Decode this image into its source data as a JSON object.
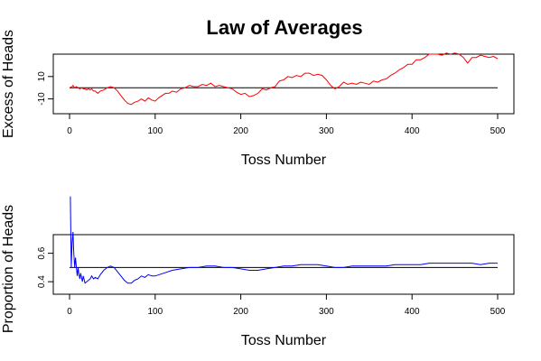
{
  "title": "Law of Averages",
  "chart_data": [
    {
      "type": "line",
      "title": "Law of Averages",
      "xlabel": "Toss Number",
      "ylabel": "Excess of Heads",
      "xlim": [
        0,
        500
      ],
      "ylim": [
        -20,
        30
      ],
      "x_ticks": [
        0,
        100,
        200,
        300,
        400,
        500
      ],
      "y_ticks": [
        -10,
        10
      ],
      "reference_line": 0,
      "grid": false,
      "color": "#ff0000",
      "series": [
        {
          "x": [
            1,
            2,
            3,
            4,
            5,
            6,
            8,
            10,
            12,
            14,
            16,
            18,
            20,
            22,
            24,
            26,
            28,
            30,
            33,
            36,
            40,
            44,
            48,
            52,
            56,
            60,
            64,
            68,
            72,
            76,
            80,
            84,
            88,
            92,
            96,
            100,
            104,
            108,
            112,
            116,
            120,
            125,
            130,
            135,
            140,
            145,
            150,
            155,
            160,
            165,
            170,
            175,
            180,
            185,
            190,
            195,
            200,
            205,
            210,
            215,
            220,
            225,
            230,
            235,
            240,
            245,
            250,
            255,
            260,
            265,
            270,
            275,
            280,
            285,
            290,
            295,
            300,
            305,
            310,
            315,
            320,
            325,
            330,
            335,
            340,
            345,
            350,
            355,
            360,
            365,
            370,
            375,
            380,
            385,
            390,
            395,
            400,
            405,
            410,
            415,
            420,
            425,
            430,
            435,
            440,
            445,
            450,
            455,
            460,
            465,
            470,
            475,
            480,
            485,
            490,
            495,
            500
          ],
          "values": [
            1,
            0,
            1,
            2,
            1,
            0,
            1,
            0,
            -1,
            0,
            -1,
            -1,
            -2,
            -1,
            -2,
            -1,
            -3,
            -3,
            -5,
            -3,
            -2,
            0,
            1,
            0,
            -3,
            -7,
            -11,
            -14,
            -15,
            -13,
            -12,
            -10,
            -12,
            -9,
            -11,
            -12,
            -9,
            -7,
            -5,
            -5,
            -3,
            -4,
            -1,
            0,
            2,
            1,
            1,
            3,
            2,
            4,
            1,
            2,
            1,
            0,
            -1,
            -4,
            -6,
            -5,
            -8,
            -7,
            -5,
            -1,
            -2,
            0,
            1,
            6,
            7,
            10,
            9,
            11,
            10,
            13,
            13,
            11,
            12,
            11,
            7,
            2,
            -1,
            1,
            5,
            3,
            4,
            3,
            5,
            4,
            3,
            6,
            5,
            7,
            8,
            11,
            13,
            16,
            18,
            21,
            21,
            25,
            25,
            27,
            30,
            30,
            30,
            29,
            31,
            30,
            31,
            30,
            27,
            22,
            27,
            27,
            29,
            28,
            27,
            28,
            26
          ]
        }
      ]
    },
    {
      "type": "line",
      "xlabel": "Toss Number",
      "ylabel": "Proportion of Heads",
      "xlim": [
        0,
        500
      ],
      "ylim": [
        0.35,
        0.75
      ],
      "x_ticks": [
        0,
        100,
        200,
        300,
        400,
        500
      ],
      "y_ticks": [
        0.4,
        0.6
      ],
      "reference_line": 0.5,
      "grid": false,
      "color": "#0000ff",
      "series": [
        {
          "x": [
            1,
            2,
            3,
            4,
            5,
            6,
            7,
            8,
            9,
            10,
            11,
            12,
            13,
            14,
            15,
            16,
            18,
            20,
            22,
            24,
            26,
            28,
            30,
            33,
            36,
            40,
            44,
            48,
            52,
            56,
            60,
            64,
            68,
            72,
            76,
            80,
            84,
            88,
            92,
            96,
            100,
            110,
            120,
            130,
            140,
            150,
            160,
            170,
            180,
            190,
            200,
            210,
            220,
            230,
            240,
            250,
            260,
            270,
            280,
            290,
            300,
            310,
            320,
            330,
            340,
            350,
            360,
            370,
            380,
            390,
            400,
            410,
            420,
            430,
            440,
            450,
            460,
            470,
            480,
            490,
            500
          ],
          "values": [
            1.0,
            0.5,
            0.67,
            0.75,
            0.6,
            0.5,
            0.57,
            0.5,
            0.44,
            0.5,
            0.45,
            0.42,
            0.46,
            0.43,
            0.4,
            0.44,
            0.39,
            0.4,
            0.41,
            0.42,
            0.44,
            0.42,
            0.43,
            0.42,
            0.45,
            0.48,
            0.5,
            0.51,
            0.5,
            0.47,
            0.44,
            0.41,
            0.39,
            0.39,
            0.41,
            0.42,
            0.44,
            0.43,
            0.45,
            0.44,
            0.44,
            0.46,
            0.48,
            0.49,
            0.5,
            0.5,
            0.51,
            0.51,
            0.5,
            0.5,
            0.49,
            0.48,
            0.48,
            0.49,
            0.5,
            0.51,
            0.51,
            0.52,
            0.52,
            0.52,
            0.51,
            0.5,
            0.5,
            0.51,
            0.51,
            0.51,
            0.51,
            0.51,
            0.52,
            0.52,
            0.52,
            0.52,
            0.53,
            0.53,
            0.53,
            0.53,
            0.53,
            0.53,
            0.52,
            0.53,
            0.53
          ]
        }
      ]
    }
  ]
}
